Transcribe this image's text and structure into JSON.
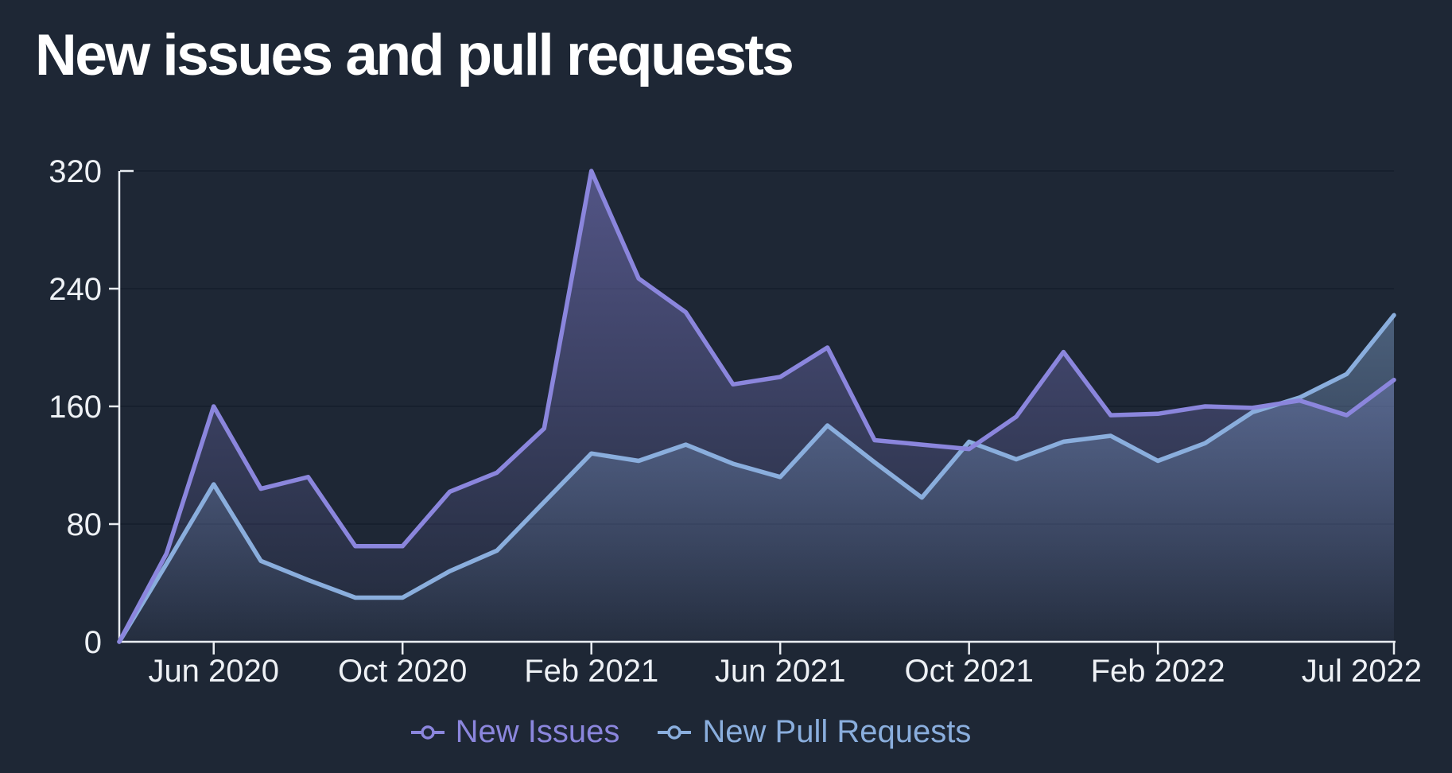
{
  "title": "New issues and pull requests",
  "legend": [
    {
      "label": "New Issues",
      "color": "#8b86dd"
    },
    {
      "label": "New Pull Requests",
      "color": "#8aaedd"
    }
  ],
  "colors": {
    "background": "#1e2735",
    "axis": "#e9edf2",
    "grid": "#17202e",
    "issues_line": "#8b86dd",
    "prs_line": "#8aaedd"
  },
  "chart_data": {
    "type": "area",
    "title": "New issues and pull requests",
    "xlabel": "",
    "ylabel": "",
    "ylim": [
      0,
      320
    ],
    "grid": "horizontal",
    "legend_position": "bottom",
    "x_categories": [
      "Apr 2020",
      "May 2020",
      "Jun 2020",
      "Jul 2020",
      "Aug 2020",
      "Sep 2020",
      "Oct 2020",
      "Nov 2020",
      "Dec 2020",
      "Jan 2021",
      "Feb 2021",
      "Mar 2021",
      "Apr 2021",
      "May 2021",
      "Jun 2021",
      "Jul 2021",
      "Aug 2021",
      "Sep 2021",
      "Oct 2021",
      "Nov 2021",
      "Dec 2021",
      "Jan 2022",
      "Feb 2022",
      "Mar 2022",
      "Apr 2022",
      "May 2022",
      "Jun 2022",
      "Jul 2022"
    ],
    "series": [
      {
        "name": "New Issues",
        "color": "#8b86dd",
        "values": [
          0,
          60,
          160,
          104,
          112,
          65,
          65,
          102,
          115,
          145,
          320,
          247,
          224,
          175,
          180,
          200,
          137,
          134,
          131,
          153,
          197,
          154,
          155,
          160,
          159,
          164,
          154,
          178
        ]
      },
      {
        "name": "New Pull Requests",
        "color": "#8aaedd",
        "values": [
          0,
          53,
          107,
          55,
          42,
          30,
          30,
          48,
          62,
          95,
          128,
          123,
          134,
          121,
          112,
          147,
          122,
          98,
          136,
          124,
          136,
          140,
          123,
          135,
          156,
          166,
          182,
          222
        ]
      }
    ],
    "y_ticks": [
      0,
      80,
      160,
      240,
      320
    ],
    "y_tick_labels": [
      "0",
      "80",
      "160",
      "240",
      "320"
    ],
    "x_tick_indices": [
      2,
      6,
      10,
      14,
      18,
      22,
      27
    ],
    "x_tick_labels": [
      "Jun 2020",
      "Oct 2020",
      "Feb 2021",
      "Jun 2021",
      "Oct 2021",
      "Feb 2022",
      "Jul 2022"
    ]
  }
}
